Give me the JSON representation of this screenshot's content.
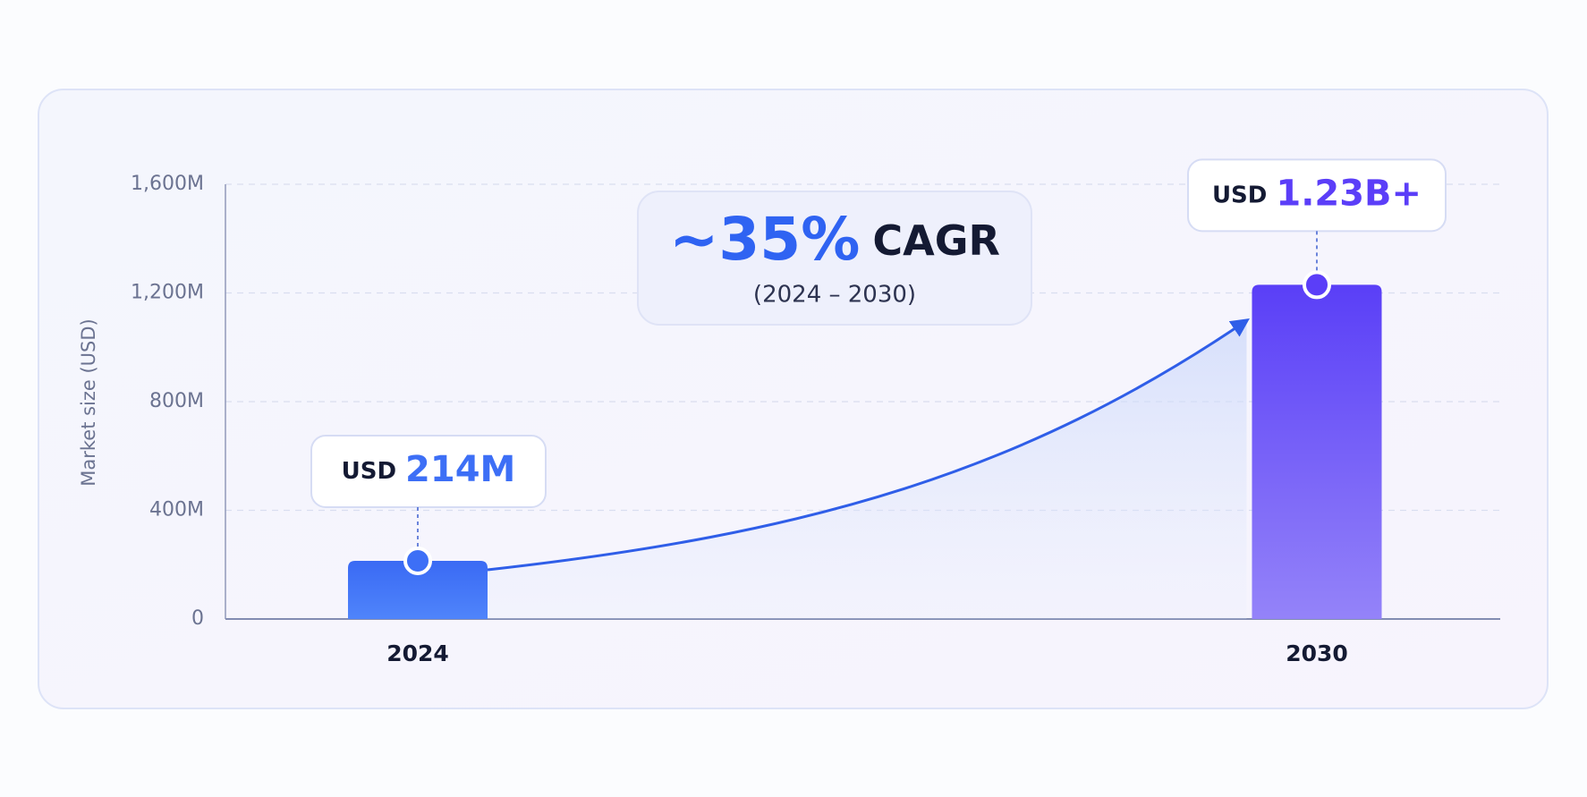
{
  "chart_data": {
    "type": "bar",
    "ylabel": "Market size (USD)",
    "categories": [
      "2024",
      "2030"
    ],
    "values": [
      214,
      1230
    ],
    "value_labels": [
      "214M",
      "1.23B+"
    ],
    "currency": "USD",
    "colors": [
      "#3d6ff6",
      "#5b3ef8"
    ],
    "ylim": [
      0,
      1600
    ],
    "yticks": [
      0,
      {
        "value": 400,
        "label": "400M"
      },
      {
        "value": 800,
        "label": "800M"
      },
      {
        "value": 1200,
        "label": "1,200M"
      },
      {
        "value": 1600,
        "label": "1,600M"
      }
    ],
    "grid": true,
    "annotation": {
      "highlight": "~35%",
      "label": "CAGR",
      "period": "(2024 – 2030)"
    }
  }
}
